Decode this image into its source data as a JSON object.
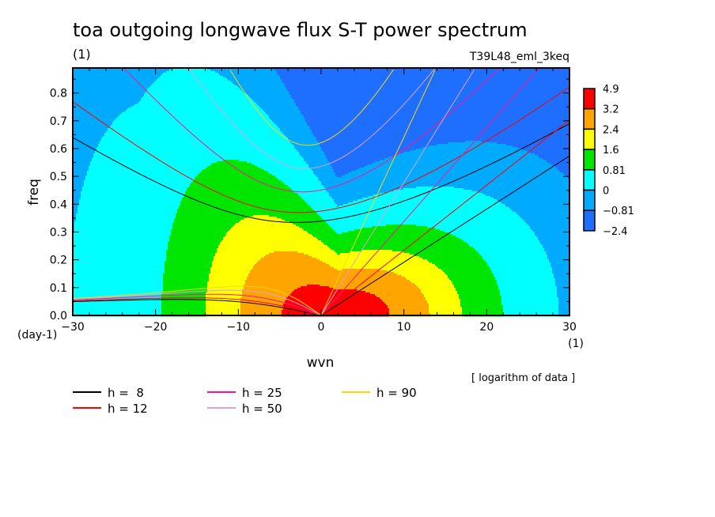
{
  "chart_data": {
    "type": "contour",
    "title": "toa outgoing longwave flux S-T power spectrum",
    "subtitle_left": "(1)",
    "subtitle_right": "T39L48_eml_3keq",
    "xlabel": "wvn",
    "ylabel": "freq",
    "x_unit": "(1)",
    "y_unit": "(day-1)",
    "xlim": [
      -30,
      30
    ],
    "ylim": [
      0,
      0.89
    ],
    "xticks": [
      "-30",
      "-20",
      "-10",
      "0",
      "10",
      "20",
      "30"
    ],
    "yticks": [
      "0.0",
      "0.1",
      "0.2",
      "0.3",
      "0.4",
      "0.5",
      "0.6",
      "0.7",
      "0.8"
    ],
    "note": "[ logarithm of data ]",
    "colorbar": {
      "labels": [
        "4.9",
        "3.2",
        "2.4",
        "1.6",
        "0.81",
        "0",
        "-0.81",
        "-2.4"
      ],
      "colors": [
        "#ff0000",
        "#ffa500",
        "#ffff00",
        "#00e600",
        "#00ffff",
        "#00aaff",
        "#1e6eff"
      ]
    },
    "dispersion_curves": [
      {
        "label": "h =  8",
        "h": 8,
        "color": "#000000"
      },
      {
        "label": "h = 12",
        "h": 12,
        "color": "#ff0000"
      },
      {
        "label": "h = 25",
        "h": 25,
        "color": "#ff1493"
      },
      {
        "label": "h = 50",
        "h": 50,
        "color": "#dda0dd"
      },
      {
        "label": "h = 90",
        "h": 90,
        "color": "#ffd700"
      }
    ]
  }
}
